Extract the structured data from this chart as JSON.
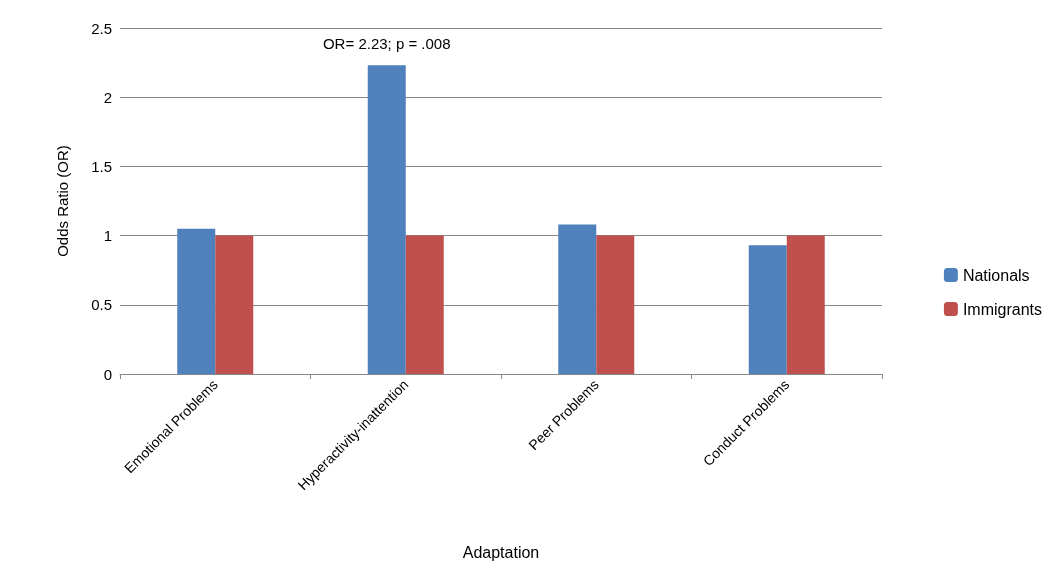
{
  "chart_data": {
    "type": "bar",
    "xlabel": "Adaptation",
    "ylabel": "Odds Ratio (OR)",
    "categories": [
      "Emotional Problems",
      "Hyperactivity-inattention",
      "Peer Problems",
      "Conduct Problems"
    ],
    "series": [
      {
        "name": "Nationals",
        "color": "#4f81bd",
        "values": [
          1.05,
          2.23,
          1.08,
          0.93
        ]
      },
      {
        "name": "Immigrants",
        "color": "#c0504d",
        "values": [
          1,
          1,
          1,
          1
        ]
      }
    ],
    "ylim": [
      0,
      2.5
    ],
    "yticks": [
      0,
      0.5,
      1,
      1.5,
      2,
      2.5
    ],
    "grid": "y",
    "legend": "right",
    "annotations": [
      {
        "text": "OR= 2.23; p = .008",
        "x": "Hyperactivity-inattention",
        "y": 2.23
      }
    ]
  }
}
